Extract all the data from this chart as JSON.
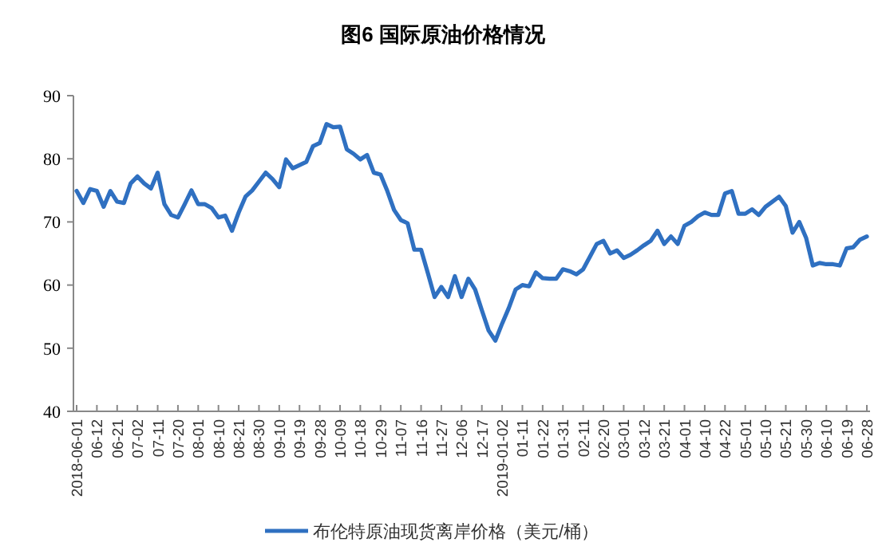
{
  "chart_data": {
    "type": "line",
    "title": "图6 国际原油价格情况",
    "categories": [
      "2018-06-01",
      null,
      null,
      "06-12",
      null,
      null,
      "06-21",
      null,
      null,
      "07-02",
      null,
      null,
      "07-11",
      null,
      null,
      "07-20",
      null,
      null,
      "08-01",
      null,
      null,
      "08-10",
      null,
      null,
      "08-21",
      null,
      null,
      "08-30",
      null,
      null,
      "09-10",
      null,
      null,
      "09-19",
      null,
      null,
      "09-28",
      null,
      null,
      "10-09",
      null,
      null,
      "10-18",
      null,
      null,
      "10-29",
      null,
      null,
      "11-07",
      null,
      null,
      "11-16",
      null,
      null,
      "11-27",
      null,
      null,
      "12-06",
      null,
      null,
      "12-17",
      null,
      null,
      "2019-01-02",
      null,
      null,
      "01-11",
      null,
      null,
      "01-22",
      null,
      null,
      "01-31",
      null,
      null,
      "02-11",
      null,
      null,
      "02-20",
      null,
      null,
      "03-01",
      null,
      null,
      "03-12",
      null,
      null,
      "03-21",
      null,
      null,
      "04-01",
      null,
      null,
      "04-10",
      null,
      null,
      "04-22",
      null,
      null,
      "05-01",
      null,
      null,
      "05-10",
      null,
      null,
      "05-21",
      null,
      null,
      "05-30",
      null,
      null,
      "06-10",
      null,
      null,
      "06-19",
      null,
      null,
      "06-28"
    ],
    "series": [
      {
        "name": "布伦特原油现货离岸价格（美元/桶）",
        "color": "#2f70c1",
        "values": [
          74.9,
          73.0,
          75.2,
          74.9,
          72.4,
          74.9,
          73.2,
          73.0,
          76.1,
          77.2,
          76.1,
          75.3,
          77.8,
          72.8,
          71.1,
          70.7,
          72.8,
          75.0,
          72.8,
          72.8,
          72.2,
          70.7,
          71.0,
          68.6,
          71.5,
          74.0,
          75.0,
          76.4,
          77.8,
          76.8,
          75.5,
          79.9,
          78.5,
          79.0,
          79.5,
          82.0,
          82.5,
          85.5,
          85.0,
          85.1,
          81.5,
          80.8,
          79.9,
          80.6,
          77.8,
          77.5,
          74.9,
          71.9,
          70.3,
          69.8,
          65.6,
          65.6,
          61.9,
          58.1,
          59.7,
          58.1,
          61.4,
          58.1,
          61.0,
          59.3,
          56.0,
          52.8,
          51.2,
          53.9,
          56.4,
          59.3,
          60.0,
          59.8,
          62.0,
          61.1,
          61.0,
          61.0,
          62.5,
          62.2,
          61.7,
          62.5,
          64.5,
          66.5,
          67.0,
          65.0,
          65.5,
          64.3,
          64.8,
          65.5,
          66.3,
          67.0,
          68.6,
          66.5,
          67.7,
          66.5,
          69.4,
          70.0,
          70.9,
          71.5,
          71.1,
          71.1,
          74.5,
          74.9,
          71.3,
          71.3,
          72.0,
          71.1,
          72.4,
          73.2,
          74.0,
          72.5,
          68.3,
          70.0,
          67.5,
          63.1,
          63.5,
          63.3,
          63.3,
          63.1,
          65.8,
          66.0,
          67.2,
          67.7
        ]
      }
    ],
    "ylim": [
      40,
      90
    ],
    "yticks": [
      40,
      50,
      60,
      70,
      80,
      90
    ],
    "grid": false,
    "legend": "bottom"
  }
}
